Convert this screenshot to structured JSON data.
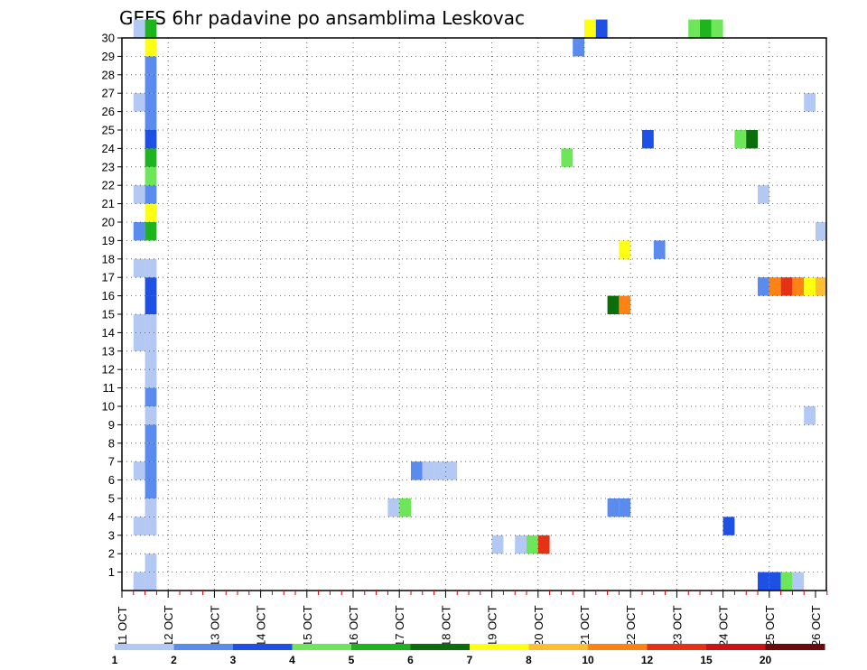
{
  "chart_data": {
    "type": "heatmap",
    "title": "GEFS 6hr padavine po ansamblima Leskovac",
    "xlabel": "",
    "ylabel": "",
    "x_tick_labels": [
      "11 OCT",
      "12 OCT",
      "13 OCT",
      "14 OCT",
      "15 OCT",
      "16 OCT",
      "17 OCT",
      "18 OCT",
      "19 OCT",
      "20 OCT",
      "21 OCT",
      "22 OCT",
      "23 OCT",
      "24 OCT",
      "25 OCT",
      "26 OCT"
    ],
    "y_tick_labels": [
      "1",
      "2",
      "3",
      "4",
      "5",
      "6",
      "7",
      "8",
      "9",
      "10",
      "11",
      "12",
      "13",
      "14",
      "15",
      "16",
      "17",
      "18",
      "19",
      "20",
      "21",
      "22",
      "23",
      "24",
      "25",
      "26",
      "27",
      "28",
      "29",
      "30"
    ],
    "x_range_days": [
      0,
      15.25
    ],
    "y_range": [
      0,
      30
    ],
    "grid": true,
    "legend": "colorbar-bottom",
    "colorbar": {
      "labels": [
        "1",
        "2",
        "3",
        "4",
        "5",
        "6",
        "7",
        "8",
        "10",
        "12",
        "15",
        "20"
      ],
      "colors": [
        "#b4c8f4",
        "#5a8cf0",
        "#1e50e6",
        "#6ee65a",
        "#1eb41e",
        "#0a6e0a",
        "#ffff14",
        "#ffbe32",
        "#ff8214",
        "#e63214",
        "#c81414",
        "#6e0a0a"
      ]
    },
    "cells_note_fields": [
      "day_offset_from_11_OCT",
      "member",
      "color_level_index"
    ],
    "cells": [
      [
        0.25,
        0,
        0
      ],
      [
        0.25,
        0,
        0
      ],
      [
        0.5,
        0,
        0
      ],
      [
        0.5,
        1,
        0
      ],
      [
        0.25,
        3,
        0
      ],
      [
        0.5,
        3,
        0
      ],
      [
        0.5,
        4,
        0
      ],
      [
        0.5,
        5,
        1
      ],
      [
        0.25,
        6,
        0
      ],
      [
        0.5,
        6,
        1
      ],
      [
        0.5,
        7,
        1
      ],
      [
        0.5,
        8,
        1
      ],
      [
        0.5,
        9,
        0
      ],
      [
        0.5,
        10,
        1
      ],
      [
        0.5,
        11,
        0
      ],
      [
        0.5,
        12,
        0
      ],
      [
        0.25,
        13,
        0
      ],
      [
        0.5,
        13,
        0
      ],
      [
        0.25,
        14,
        0
      ],
      [
        0.5,
        14,
        0
      ],
      [
        0.5,
        15,
        2
      ],
      [
        0.5,
        16,
        2
      ],
      [
        0.25,
        17,
        0
      ],
      [
        0.5,
        17,
        0
      ],
      [
        0.25,
        19,
        1
      ],
      [
        0.5,
        19,
        4
      ],
      [
        0.5,
        20,
        6
      ],
      [
        0.25,
        21,
        0
      ],
      [
        0.5,
        21,
        1
      ],
      [
        0.5,
        22,
        3
      ],
      [
        0.5,
        23,
        4
      ],
      [
        0.5,
        24,
        2
      ],
      [
        0.5,
        25,
        1
      ],
      [
        0.25,
        26,
        0
      ],
      [
        0.5,
        26,
        1
      ],
      [
        0.5,
        27,
        1
      ],
      [
        0.5,
        28,
        1
      ],
      [
        0.5,
        29,
        6
      ],
      [
        0.25,
        30,
        0
      ],
      [
        0.5,
        30,
        4
      ],
      [
        5.75,
        4,
        0
      ],
      [
        6.0,
        4,
        3
      ],
      [
        6.25,
        6,
        1
      ],
      [
        6.5,
        6,
        0
      ],
      [
        6.75,
        6,
        0
      ],
      [
        7.0,
        6,
        0
      ],
      [
        8.0,
        2,
        0
      ],
      [
        8.5,
        2,
        0
      ],
      [
        8.75,
        2,
        3
      ],
      [
        9.0,
        2,
        9
      ],
      [
        9.5,
        23,
        3
      ],
      [
        9.75,
        29,
        1
      ],
      [
        10.0,
        30,
        6
      ],
      [
        10.25,
        30,
        2
      ],
      [
        10.5,
        4,
        1
      ],
      [
        10.75,
        4,
        1
      ],
      [
        10.5,
        15,
        5
      ],
      [
        10.75,
        15,
        8
      ],
      [
        10.75,
        18,
        6
      ],
      [
        11.25,
        24,
        2
      ],
      [
        11.5,
        18,
        1
      ],
      [
        12.25,
        30,
        3
      ],
      [
        12.5,
        30,
        4
      ],
      [
        12.75,
        30,
        3
      ],
      [
        13.0,
        3,
        2
      ],
      [
        13.25,
        24,
        3
      ],
      [
        13.5,
        24,
        5
      ],
      [
        13.75,
        21,
        0
      ],
      [
        13.75,
        16,
        1
      ],
      [
        14.0,
        16,
        8
      ],
      [
        14.25,
        16,
        9
      ],
      [
        14.5,
        16,
        8
      ],
      [
        14.75,
        16,
        6
      ],
      [
        15.0,
        16,
        7
      ],
      [
        13.75,
        0,
        2
      ],
      [
        14.0,
        0,
        2
      ],
      [
        14.25,
        0,
        3
      ],
      [
        14.5,
        0,
        0
      ],
      [
        14.75,
        9,
        0
      ],
      [
        14.75,
        26,
        0
      ],
      [
        15.0,
        19,
        0
      ]
    ]
  }
}
